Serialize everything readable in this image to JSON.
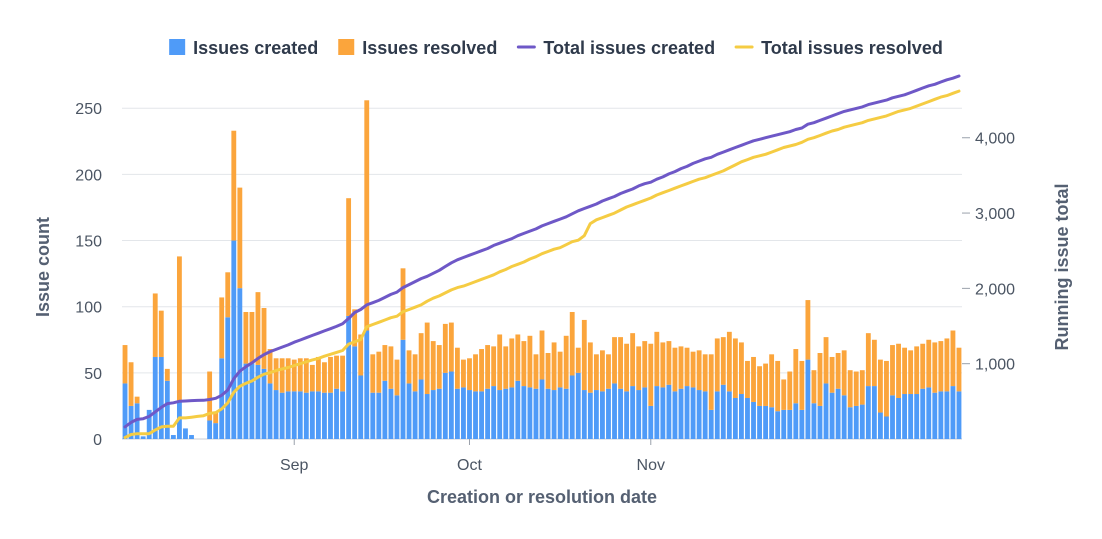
{
  "chart_data": {
    "type": "bar",
    "title": "",
    "xlabel": "Creation or resolution date",
    "ylabel": "Issue count",
    "y2label": "Running issue total",
    "ylim": [
      0,
      260
    ],
    "y2lim": [
      0,
      4780
    ],
    "yticks": [
      0,
      50,
      100,
      150,
      200,
      250
    ],
    "y2ticks": [
      1000,
      2000,
      3000,
      4000
    ],
    "y2tick_labels": [
      "1,000",
      "2,000",
      "3,000",
      "4,000"
    ],
    "x_ticks": [
      {
        "label": "Sep",
        "index": 28
      },
      {
        "label": "Oct",
        "index": 57
      },
      {
        "label": "Nov",
        "index": 87
      }
    ],
    "legend": {
      "placement": "top",
      "entries": [
        {
          "name": "Issues created",
          "kind": "bar",
          "color": "#4f9bf8"
        },
        {
          "name": "Issues resolved",
          "kind": "bar",
          "color": "#fba53c"
        },
        {
          "name": "Total issues created",
          "kind": "line",
          "color": "#6e58c7"
        },
        {
          "name": "Total issues resolved",
          "kind": "line",
          "color": "#f5cc43"
        }
      ]
    },
    "series": [
      {
        "name": "Issues created",
        "stack": "daily",
        "color": "#4f9bf8",
        "values": [
          42,
          25,
          27,
          2,
          22,
          62,
          62,
          44,
          3,
          28,
          8,
          3,
          0,
          0,
          14,
          12,
          61,
          92,
          150,
          114,
          57,
          57,
          56,
          53,
          42,
          37,
          35,
          36,
          36,
          36,
          35,
          36,
          36,
          35,
          35,
          38,
          36,
          93,
          70,
          48,
          82,
          35,
          35,
          44,
          38,
          33,
          75,
          42,
          36,
          45,
          34,
          37,
          38,
          50,
          51,
          38,
          39,
          37,
          36,
          36,
          38,
          40,
          37,
          38,
          39,
          44,
          40,
          39,
          38,
          45,
          38,
          37,
          39,
          38,
          48,
          50,
          37,
          35,
          37,
          36,
          38,
          42,
          38,
          36,
          40,
          37,
          39,
          25,
          40,
          39,
          41,
          36,
          38,
          40,
          39,
          37,
          36,
          22,
          36,
          41,
          36,
          31,
          34,
          31,
          28,
          25,
          25,
          24,
          21,
          22,
          22,
          27,
          22,
          60,
          27,
          25,
          42,
          35,
          38,
          33,
          24,
          25,
          26,
          40,
          40,
          20,
          17,
          33,
          31,
          34,
          34,
          34,
          38,
          39,
          35,
          36,
          36,
          40,
          36
        ]
      },
      {
        "name": "Issues resolved",
        "stack": "daily",
        "color": "#fba53c",
        "values": [
          29,
          33,
          5,
          0,
          0,
          48,
          35,
          9,
          0,
          110,
          0,
          0,
          0,
          0,
          37,
          8,
          46,
          34,
          83,
          76,
          39,
          39,
          55,
          46,
          26,
          24,
          26,
          25,
          24,
          25,
          26,
          20,
          26,
          23,
          27,
          25,
          27,
          89,
          28,
          31,
          174,
          29,
          31,
          27,
          32,
          27,
          54,
          25,
          28,
          35,
          54,
          37,
          33,
          37,
          37,
          31,
          21,
          24,
          28,
          32,
          33,
          30,
          42,
          32,
          37,
          35,
          34,
          39,
          26,
          37,
          27,
          36,
          27,
          40,
          48,
          19,
          53,
          38,
          27,
          31,
          26,
          35,
          39,
          36,
          40,
          33,
          35,
          47,
          41,
          34,
          33,
          33,
          32,
          29,
          27,
          30,
          28,
          42,
          40,
          36,
          45,
          45,
          39,
          28,
          34,
          30,
          32,
          40,
          38,
          23,
          29,
          41,
          37,
          45,
          25,
          40,
          35,
          27,
          27,
          34,
          28,
          26,
          26,
          40,
          35,
          40,
          42,
          38,
          41,
          35,
          33,
          36,
          34,
          36,
          38,
          38,
          40,
          42,
          33
        ]
      },
      {
        "name": "Total issues created",
        "kind": "line",
        "axis": "y2",
        "color": "#6e58c7",
        "values": [
          160,
          220,
          260,
          270,
          300,
          360,
          420,
          470,
          480,
          500,
          505,
          510,
          512,
          514,
          525,
          540,
          580,
          650,
          800,
          900,
          960,
          1010,
          1070,
          1120,
          1160,
          1190,
          1220,
          1250,
          1285,
          1315,
          1345,
          1375,
          1405,
          1435,
          1465,
          1495,
          1530,
          1600,
          1680,
          1720,
          1780,
          1810,
          1840,
          1880,
          1920,
          1950,
          2010,
          2050,
          2090,
          2130,
          2160,
          2200,
          2240,
          2290,
          2340,
          2380,
          2410,
          2440,
          2470,
          2500,
          2530,
          2570,
          2600,
          2630,
          2660,
          2700,
          2730,
          2760,
          2790,
          2830,
          2860,
          2890,
          2920,
          2950,
          2990,
          3030,
          3060,
          3090,
          3120,
          3160,
          3190,
          3220,
          3260,
          3290,
          3320,
          3360,
          3390,
          3410,
          3450,
          3480,
          3520,
          3550,
          3590,
          3620,
          3660,
          3690,
          3720,
          3740,
          3780,
          3810,
          3840,
          3870,
          3900,
          3930,
          3960,
          3980,
          4000,
          4020,
          4040,
          4060,
          4080,
          4110,
          4130,
          4180,
          4200,
          4230,
          4260,
          4290,
          4320,
          4350,
          4370,
          4390,
          4410,
          4440,
          4460,
          4480,
          4500,
          4530,
          4550,
          4570,
          4600,
          4630,
          4660,
          4690,
          4710,
          4740,
          4770,
          4790,
          4820
        ]
      },
      {
        "name": "Total issues resolved",
        "kind": "line",
        "axis": "y2",
        "color": "#f5cc43",
        "values": [
          20,
          60,
          70,
          70,
          70,
          120,
          160,
          170,
          170,
          280,
          280,
          290,
          300,
          310,
          340,
          350,
          400,
          480,
          620,
          700,
          740,
          770,
          820,
          860,
          880,
          910,
          930,
          950,
          975,
          1000,
          1025,
          1050,
          1070,
          1100,
          1125,
          1150,
          1175,
          1260,
          1290,
          1320,
          1490,
          1520,
          1550,
          1580,
          1610,
          1630,
          1690,
          1720,
          1750,
          1780,
          1830,
          1870,
          1900,
          1940,
          1980,
          2010,
          2030,
          2060,
          2090,
          2120,
          2150,
          2180,
          2220,
          2250,
          2290,
          2320,
          2350,
          2390,
          2420,
          2460,
          2490,
          2520,
          2540,
          2580,
          2620,
          2640,
          2700,
          2860,
          2910,
          2940,
          2970,
          3000,
          3040,
          3080,
          3110,
          3140,
          3170,
          3200,
          3240,
          3270,
          3300,
          3330,
          3360,
          3390,
          3420,
          3450,
          3470,
          3500,
          3530,
          3560,
          3600,
          3640,
          3680,
          3710,
          3740,
          3760,
          3780,
          3810,
          3840,
          3870,
          3890,
          3910,
          3940,
          3980,
          4000,
          4030,
          4060,
          4090,
          4110,
          4140,
          4160,
          4180,
          4200,
          4230,
          4250,
          4270,
          4290,
          4320,
          4350,
          4370,
          4390,
          4420,
          4450,
          4480,
          4510,
          4540,
          4560,
          4590,
          4620
        ]
      }
    ]
  }
}
